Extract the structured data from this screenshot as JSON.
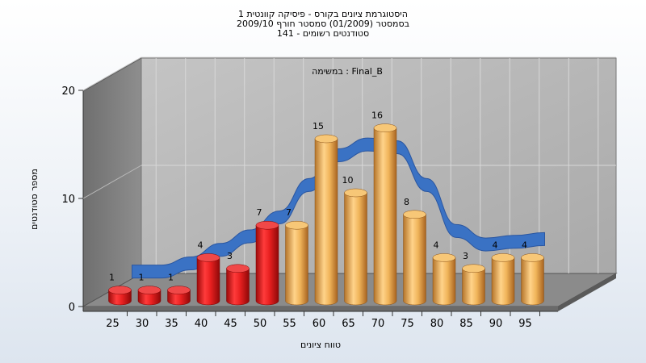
{
  "header": {
    "title_line1": "היסטוגרמת ציונים בקורס - פיסיקה קוונטית 1",
    "title_line2": "בסמסטר  (01/2009)  סמסטר חורף 2009/10",
    "title_line3": "סטודנטים רשומים - 141"
  },
  "chart_data": {
    "type": "bar",
    "title": "היסטוגרמת ציונים בקורס - פיסיקה קוונטית 1",
    "subtitle": "בסמסטר  (01/2009)  סמסטר חורף 2009/10 | סטודנטים רשומים - 141",
    "annotation": "במשימה : Final_B",
    "xlabel": "טווח ציונים",
    "ylabel": "מספר סטודנטים",
    "categories": [
      "25",
      "30",
      "35",
      "40",
      "45",
      "50",
      "55",
      "60",
      "65",
      "70",
      "75",
      "80",
      "85",
      "90",
      "95"
    ],
    "values": [
      1,
      1,
      1,
      4,
      3,
      7,
      7,
      15,
      10,
      16,
      8,
      4,
      3,
      4,
      4
    ],
    "ylim": [
      0,
      20
    ],
    "yticks": [
      0,
      10,
      20
    ],
    "bar_colors": [
      "#e01818",
      "#e01818",
      "#e01818",
      "#e01818",
      "#e01818",
      "#e01818",
      "#e9a445",
      "#e9a445",
      "#e9a445",
      "#e9a445",
      "#e9a445",
      "#e9a445",
      "#e9a445",
      "#e9a445",
      "#e9a445"
    ],
    "curve_color": "#3a72c4",
    "grid": true,
    "style": "3d-cylinder"
  }
}
